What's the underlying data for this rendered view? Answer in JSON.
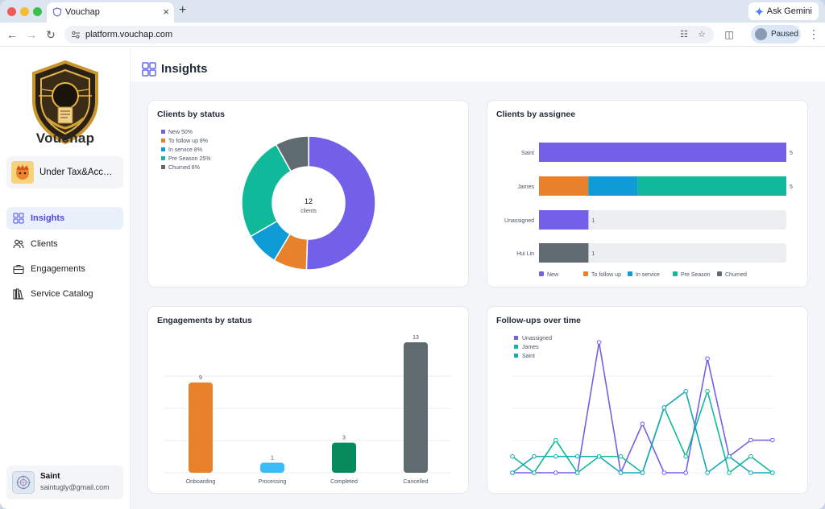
{
  "browser": {
    "tab_title": "Vouchap",
    "url": "platform.vouchap.com",
    "gemini_label": "Ask Gemini",
    "profile_label": "Paused"
  },
  "sidebar": {
    "brand": "Vouchap",
    "org_name": "Under Tax&Accounting",
    "items": [
      {
        "label": "Insights",
        "icon": "grid-icon",
        "active": true
      },
      {
        "label": "Clients",
        "icon": "users-icon",
        "active": false
      },
      {
        "label": "Engagements",
        "icon": "briefcase-icon",
        "active": false
      },
      {
        "label": "Service Catalog",
        "icon": "library-icon",
        "active": false
      }
    ],
    "user": {
      "name": "Saint",
      "email": "saintugly@gmail.com"
    }
  },
  "page": {
    "title": "Insights"
  },
  "colors": {
    "new": "#7360e8",
    "follow_up": "#e8812b",
    "in_service": "#0e9bd6",
    "pre_season": "#10b999",
    "churned": "#5f6b70",
    "processing": "#38bdf8",
    "completed": "#078a5c",
    "saint_line": "#14a8b8"
  },
  "chart_data": [
    {
      "type": "pie",
      "title": "Clients by status",
      "center_value": "12",
      "center_label": "clients",
      "slices": [
        {
          "label": "New 50%",
          "name": "New",
          "value": 50
        },
        {
          "label": "To follow up 8%",
          "name": "To follow up",
          "value": 8
        },
        {
          "label": "In service 8%",
          "name": "In service",
          "value": 8
        },
        {
          "label": "Pre Season 25%",
          "name": "Pre Season",
          "value": 25
        },
        {
          "label": "Churned 8%",
          "name": "Churned",
          "value": 8
        }
      ]
    },
    {
      "type": "bar",
      "title": "Clients by assignee",
      "orientation": "horizontal",
      "stacked": true,
      "max": 5,
      "categories": [
        "Saint",
        "James",
        "Unassigned",
        "Hui Lin"
      ],
      "totals": [
        "5",
        "5",
        "1",
        "1"
      ],
      "series": [
        {
          "name": "New",
          "values": [
            5,
            0,
            1,
            0
          ]
        },
        {
          "name": "To follow up",
          "values": [
            0,
            1,
            0,
            0
          ]
        },
        {
          "name": "In service",
          "values": [
            0,
            1,
            0,
            0
          ]
        },
        {
          "name": "Pre Season",
          "values": [
            0,
            3,
            0,
            0
          ]
        },
        {
          "name": "Churned",
          "values": [
            0,
            0,
            0,
            1
          ]
        }
      ]
    },
    {
      "type": "bar",
      "title": "Engagements by status",
      "categories": [
        "Onboarding",
        "Processing",
        "Completed",
        "Cancelled"
      ],
      "values": [
        9,
        1,
        3,
        13
      ],
      "ylim": [
        0,
        13
      ],
      "grid": true
    },
    {
      "type": "line",
      "title": "Follow-ups over time",
      "legend_position": "top-left",
      "series": [
        {
          "name": "Unassigned",
          "values": [
            0,
            0,
            0,
            0,
            8,
            0,
            3,
            0,
            0,
            7,
            1,
            2,
            2
          ]
        },
        {
          "name": "James",
          "values": [
            1,
            0,
            2,
            0,
            1,
            1,
            0,
            4,
            1,
            5,
            0,
            1,
            0
          ]
        },
        {
          "name": "Saint",
          "values": [
            0,
            1,
            1,
            1,
            1,
            0,
            0,
            4,
            5,
            0,
            1,
            0,
            0
          ]
        }
      ]
    }
  ]
}
